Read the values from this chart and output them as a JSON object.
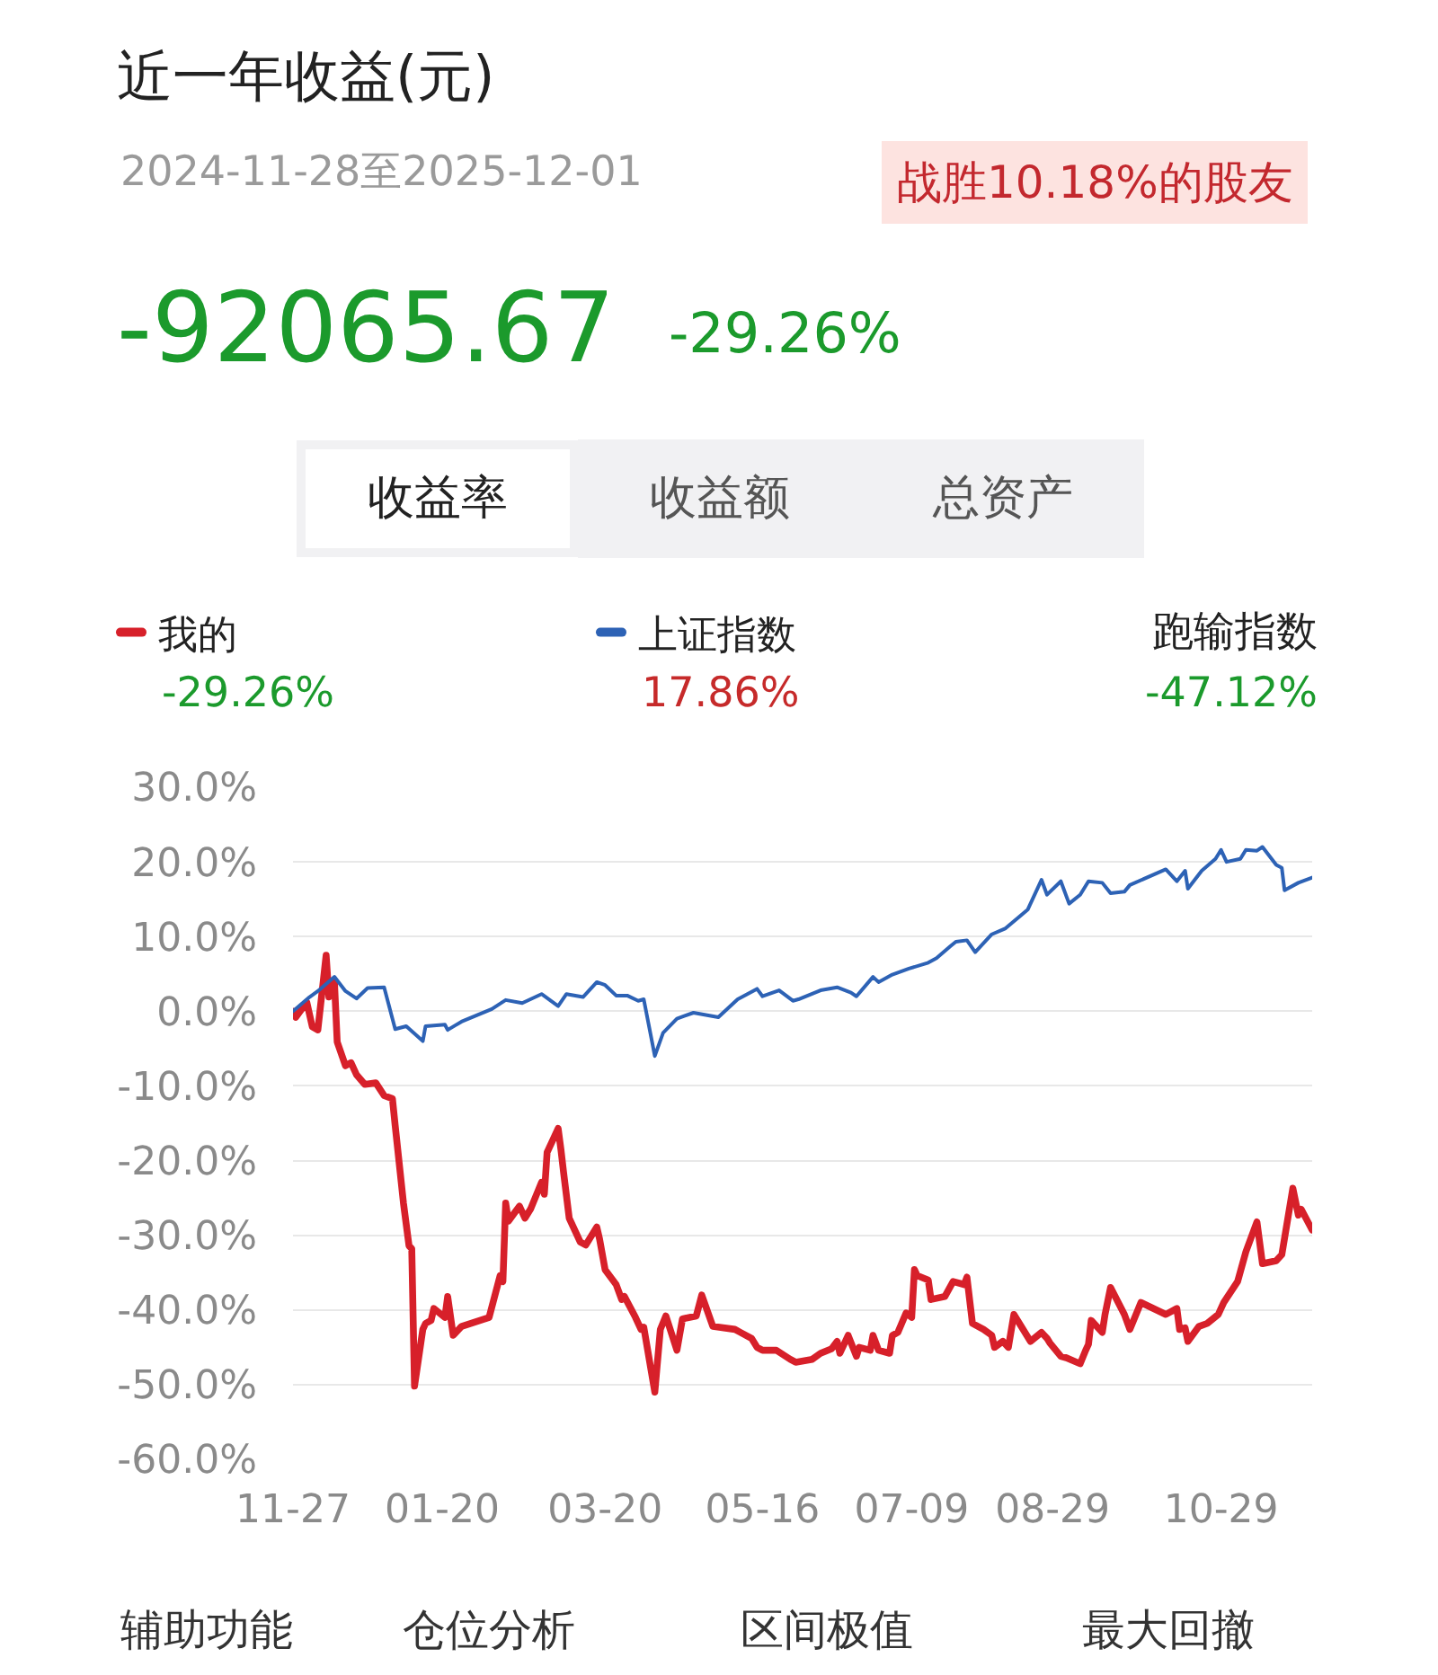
{
  "chart_data": {
    "type": "line",
    "title": "近一年收益(元)",
    "subtitle": "2024-11-28至2025-12-01",
    "annotations": [
      "战胜10.18%的股友",
      "-92065.67",
      "-29.26%",
      "收益率",
      "收益额",
      "总资产",
      "-29.26%",
      "17.86%",
      "跑输指数",
      "-47.12%",
      "辅助功能",
      "仓位分析",
      "区间极值",
      "最大回撤"
    ],
    "series": [
      {
        "name": "我的",
        "color": "#d7202a",
        "x": [
          "2024-11-27",
          "2024-11-28",
          "2024-12-02",
          "2024-12-04",
          "2024-12-06",
          "2024-12-09",
          "2024-12-10",
          "2024-12-11",
          "2024-12-12",
          "2024-12-13",
          "2024-12-16",
          "2024-12-18",
          "2024-12-20",
          "2024-12-23",
          "2024-12-27",
          "2024-12-30",
          "2025-01-02",
          "2025-01-03",
          "2025-01-06",
          "2025-01-08",
          "2025-01-09",
          "2025-01-10",
          "2025-01-13",
          "2025-01-14",
          "2025-01-16",
          "2025-01-17",
          "2025-01-21",
          "2025-01-22",
          "2025-01-24",
          "2025-01-27",
          "2025-02-06",
          "2025-02-10",
          "2025-02-11",
          "2025-02-12",
          "2025-02-13",
          "2025-02-17",
          "2025-02-19",
          "2025-02-21",
          "2025-02-25",
          "2025-02-26",
          "2025-02-27",
          "2025-03-03",
          "2025-03-04",
          "2025-03-05",
          "2025-03-07",
          "2025-03-11",
          "2025-03-13",
          "2025-03-17",
          "2025-03-18",
          "2025-03-20",
          "2025-03-24",
          "2025-03-26",
          "2025-03-27",
          "2025-03-31",
          "2025-04-02",
          "2025-04-03",
          "2025-04-07",
          "2025-04-09",
          "2025-04-11",
          "2025-04-15",
          "2025-04-17",
          "2025-04-22",
          "2025-04-24",
          "2025-04-28",
          "2025-05-06",
          "2025-05-08",
          "2025-05-12",
          "2025-05-14",
          "2025-05-16",
          "2025-05-21",
          "2025-05-26",
          "2025-05-28",
          "2025-06-03",
          "2025-06-06",
          "2025-06-10",
          "2025-06-12",
          "2025-06-13",
          "2025-06-16",
          "2025-06-19",
          "2025-06-20",
          "2025-06-24",
          "2025-06-25",
          "2025-06-27",
          "2025-07-01",
          "2025-07-02",
          "2025-07-04",
          "2025-07-07",
          "2025-07-09",
          "2025-07-10",
          "2025-07-11",
          "2025-07-15",
          "2025-07-16",
          "2025-07-21",
          "2025-07-24",
          "2025-07-28",
          "2025-07-29",
          "2025-07-31",
          "2025-08-04",
          "2025-08-07",
          "2025-08-08",
          "2025-08-11",
          "2025-08-13",
          "2025-08-15",
          "2025-08-19",
          "2025-08-21",
          "2025-08-25",
          "2025-08-27",
          "2025-08-28",
          "2025-09-01",
          "2025-09-03",
          "2025-09-08",
          "2025-09-10",
          "2025-09-11",
          "2025-09-12",
          "2025-09-16",
          "2025-09-17",
          "2025-09-19",
          "2025-09-24",
          "2025-09-26",
          "2025-09-30",
          "2025-10-09",
          "2025-10-13",
          "2025-10-14",
          "2025-10-16",
          "2025-10-17",
          "2025-10-21",
          "2025-10-24",
          "2025-10-28",
          "2025-10-30",
          "2025-11-04",
          "2025-11-07",
          "2025-11-11",
          "2025-11-13",
          "2025-11-18",
          "2025-11-20",
          "2025-11-24",
          "2025-11-26",
          "2025-11-27",
          "2025-12-01"
        ],
        "values": [
          0,
          -0.8,
          1.2,
          -2.1,
          -2.5,
          7.5,
          1.9,
          2.7,
          3.9,
          -4.1,
          -7.3,
          -6.9,
          -8.5,
          -9.8,
          -9.6,
          -11.3,
          -11.7,
          -15.3,
          -25.7,
          -31.4,
          -31.8,
          -50.2,
          -42.6,
          -41.8,
          -41.4,
          -39.8,
          -41.0,
          -38.2,
          -43.4,
          -42.2,
          -41.0,
          -35.4,
          -36.2,
          -25.7,
          -28.1,
          -26.1,
          -27.7,
          -26.5,
          -22.9,
          -24.5,
          -18.9,
          -15.7,
          -18.5,
          -21.7,
          -27.7,
          -30.9,
          -31.3,
          -28.9,
          -30.5,
          -34.6,
          -36.6,
          -38.6,
          -38.2,
          -41.0,
          -42.6,
          -42.3,
          -51.0,
          -42.6,
          -40.8,
          -45.4,
          -41.2,
          -40.8,
          -38.0,
          -42.2,
          -42.6,
          -43.0,
          -43.8,
          -45.0,
          -45.4,
          -45.4,
          -46.6,
          -47.0,
          -46.6,
          -45.8,
          -45.2,
          -44.2,
          -45.8,
          -43.4,
          -46.2,
          -45.0,
          -45.4,
          -43.4,
          -45.4,
          -45.8,
          -43.4,
          -43.0,
          -40.4,
          -41.0,
          -34.6,
          -35.4,
          -36.0,
          -38.6,
          -38.2,
          -36.2,
          -36.6,
          -35.6,
          -41.8,
          -42.6,
          -43.4,
          -45.0,
          -44.2,
          -45.0,
          -40.6,
          -43.0,
          -44.2,
          -43.0,
          -43.8,
          -44.4,
          -46.2,
          -46.4,
          -47.2,
          -45.4,
          -44.6,
          -41.4,
          -43.0,
          -40.6,
          -37.0,
          -40.6,
          -42.6,
          -39.0,
          -40.6,
          -39.8,
          -42.6,
          -42.4,
          -44.2,
          -42.2,
          -41.8,
          -40.6,
          -39.0,
          -36.2,
          -32.2,
          -28.2,
          -33.8,
          -33.4,
          -32.6,
          -23.7,
          -27.3,
          -26.5,
          -29.3
        ]
      },
      {
        "name": "上证指数",
        "color": "#2d62b5",
        "x": [
          "2024-11-27",
          "2024-12-03",
          "2024-12-06",
          "2024-12-12",
          "2024-12-16",
          "2024-12-20",
          "2024-12-24",
          "2024-12-30",
          "2025-01-03",
          "2025-01-07",
          "2025-01-13",
          "2025-01-14",
          "2025-01-21",
          "2025-01-22",
          "2025-01-27",
          "2025-02-07",
          "2025-02-12",
          "2025-02-18",
          "2025-02-25",
          "2025-03-03",
          "2025-03-06",
          "2025-03-12",
          "2025-03-17",
          "2025-03-20",
          "2025-03-24",
          "2025-03-28",
          "2025-04-01",
          "2025-04-03",
          "2025-04-07",
          "2025-04-10",
          "2025-04-15",
          "2025-04-21",
          "2025-04-30",
          "2025-05-07",
          "2025-05-09",
          "2025-05-14",
          "2025-05-16",
          "2025-05-22",
          "2025-05-27",
          "2025-05-29",
          "2025-06-06",
          "2025-06-12",
          "2025-06-17",
          "2025-06-19",
          "2025-06-25",
          "2025-06-27",
          "2025-07-02",
          "2025-07-08",
          "2025-07-15",
          "2025-07-18",
          "2025-07-23",
          "2025-07-25",
          "2025-07-29",
          "2025-08-01",
          "2025-08-07",
          "2025-08-12",
          "2025-08-20",
          "2025-08-25",
          "2025-08-27",
          "2025-09-01",
          "2025-09-04",
          "2025-09-08",
          "2025-09-11",
          "2025-09-16",
          "2025-09-19",
          "2025-09-24",
          "2025-09-26",
          "2025-10-09",
          "2025-10-13",
          "2025-10-16",
          "2025-10-17",
          "2025-10-22",
          "2025-10-27",
          "2025-10-29",
          "2025-10-31",
          "2025-11-05",
          "2025-11-07",
          "2025-11-11",
          "2025-11-13",
          "2025-11-18",
          "2025-11-20",
          "2025-11-21",
          "2025-11-26",
          "2025-12-01"
        ],
        "values": [
          0,
          1.9,
          2.7,
          4.6,
          2.7,
          1.7,
          3.1,
          3.2,
          -2.4,
          -2.0,
          -4.0,
          -2.0,
          -1.8,
          -2.5,
          -1.4,
          0.3,
          1.5,
          1.1,
          2.3,
          0.7,
          2.3,
          1.9,
          3.9,
          3.5,
          2.1,
          2.1,
          1.4,
          1.6,
          -6.0,
          -2.9,
          -1.0,
          -0.2,
          -0.8,
          1.6,
          2.0,
          3.0,
          2.0,
          2.8,
          1.4,
          1.6,
          2.8,
          3.2,
          2.5,
          2.0,
          4.6,
          3.9,
          4.9,
          5.7,
          6.5,
          7.1,
          8.7,
          9.3,
          9.5,
          7.9,
          10.3,
          11.1,
          13.6,
          17.6,
          15.6,
          17.4,
          14.4,
          15.6,
          17.4,
          17.2,
          15.8,
          16.0,
          16.9,
          19.0,
          17.4,
          18.8,
          16.4,
          18.8,
          20.4,
          21.6,
          20.0,
          20.4,
          21.6,
          21.5,
          22.0,
          19.6,
          19.2,
          16.2,
          17.2,
          17.9
        ]
      }
    ],
    "xlim": [
      "2024-11-27",
      "2025-12-01"
    ],
    "xticks": [
      {
        "value": "2024-11-27",
        "label": "11-27"
      },
      {
        "value": "2025-01-20",
        "label": "01-20"
      },
      {
        "value": "2025-03-20",
        "label": "03-20"
      },
      {
        "value": "2025-05-16",
        "label": "05-16"
      },
      {
        "value": "2025-07-09",
        "label": "07-09"
      },
      {
        "value": "2025-08-29",
        "label": "08-29"
      },
      {
        "value": "2025-10-29",
        "label": "10-29"
      }
    ],
    "ylim": [
      -60,
      30
    ],
    "yticks": [
      {
        "value": 30,
        "label": "30.0%"
      },
      {
        "value": 20,
        "label": "20.0%"
      },
      {
        "value": 10,
        "label": "10.0%"
      },
      {
        "value": 0,
        "label": "0.0%"
      },
      {
        "value": -10,
        "label": "-10.0%"
      },
      {
        "value": -20,
        "label": "-20.0%"
      },
      {
        "value": -30,
        "label": "-30.0%"
      },
      {
        "value": -40,
        "label": "-40.0%"
      },
      {
        "value": -50,
        "label": "-50.0%"
      },
      {
        "value": -60,
        "label": "-60.0%"
      }
    ],
    "grid": "y",
    "legend": "top"
  }
}
